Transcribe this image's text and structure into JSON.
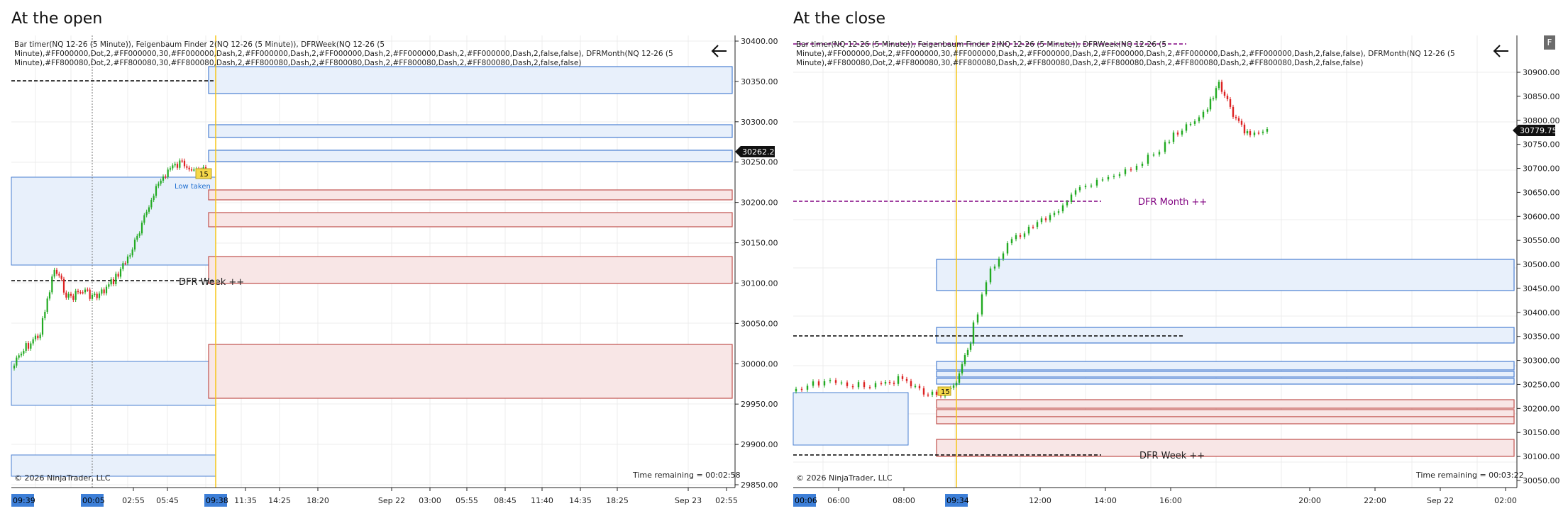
{
  "left": {
    "title": "At the open",
    "indicators": [
      "Bar timer(NQ 12-26 (5 Minute)), Feigenbaum Finder 2(NQ 12-26 (5 Minute)), DFRWeek(NQ 12-26 (5",
      "Minute),#FF000000,Dot,2,#FF000000,30,#FF000000,Dash,2,#FF000000,Dash,2,#FF000000,Dash,2,#FF000000,Dash,2,#FF000000,Dash,2,false,false), DFRMonth(NQ 12-26 (5",
      "Minute),#FF800080,Dot,2,#FF800080,30,#FF800080,Dash,2,#FF800080,Dash,2,#FF800080,Dash,2,#FF800080,Dash,2,#FF800080,Dash,2,false,false)"
    ],
    "price_labels": [
      "30400.00",
      "30350.00",
      "30300.00",
      "30250.00",
      "30200.00",
      "30150.00",
      "30100.00",
      "30050.00",
      "30000.00",
      "29950.00",
      "29900.00",
      "29850.00"
    ],
    "current_price": "30262.25",
    "time_labels": [
      "02:55",
      "05:45",
      "11:35",
      "14:25",
      "18:20",
      "Sep 22",
      "03:00",
      "05:55",
      "08:45",
      "11:40",
      "14:35",
      "18:25",
      "Sep 23",
      "02:55"
    ],
    "time_boxes": [
      "09:39",
      "00:05",
      "09:38"
    ],
    "dfr_label": "DFR Week ++",
    "low_taken": "Low taken",
    "badge": "15",
    "copyright": "© 2026 NinjaTrader, LLC",
    "time_remaining": "Time remaining = 00:02:58",
    "back_icon": "arrow-left-icon"
  },
  "right": {
    "title": "At the close",
    "indicators": [
      "Bar timer(NQ 12-26 (5 Minute)), Feigenbaum Finder 2(NQ 12-26 (5 Minute)), DFRWeek(NQ 12-26 (5",
      "Minute),#FF000000,Dot,2,#FF000000,30,#FF000000,Dash,2,#FF000000,Dash,2,#FF000000,Dash,2,#FF000000,Dash,2,#FF000000,Dash,2,false,false), DFRMonth(NQ 12-26 (5",
      "Minute),#FF800080,Dot,2,#FF800080,30,#FF800080,Dash,2,#FF800080,Dash,2,#FF800080,Dash,2,#FF800080,Dash,2,#FF800080,Dash,2,false,false)"
    ],
    "price_labels": [
      "30900.00",
      "30850.00",
      "30800.00",
      "30750.00",
      "30700.00",
      "30650.00",
      "30600.00",
      "30550.00",
      "30500.00",
      "30450.00",
      "30400.00",
      "30350.00",
      "30300.00",
      "30250.00",
      "30200.00",
      "30150.00",
      "30100.00",
      "30050.00"
    ],
    "current_price": "30779.75",
    "time_labels": [
      "06:00",
      "08:00",
      "12:00",
      "14:00",
      "16:00",
      "20:00",
      "22:00",
      "Sep 22",
      "02:00"
    ],
    "time_boxes": [
      "00:06",
      "09:34"
    ],
    "dfr_week_label": "DFR Week ++",
    "dfr_month_label": "DFR Month ++",
    "badge": "15",
    "copyright": "© 2026 NinjaTrader, LLC",
    "time_remaining": "Time remaining = 00:03:22",
    "back_icon": "arrow-left-icon",
    "side_button": "F"
  },
  "colors": {
    "blue_zone_fill": "#e8f0fb",
    "blue_zone_stroke": "#4a7fd1",
    "red_zone_fill": "#f8e6e6",
    "red_zone_stroke": "#c0504d",
    "vline": "#f5c518",
    "candle_up": "#22aa22",
    "candle_down": "#dd2222",
    "dfr_week": "#000000",
    "dfr_month": "#800080",
    "time_box": "#3d7fd8"
  }
}
